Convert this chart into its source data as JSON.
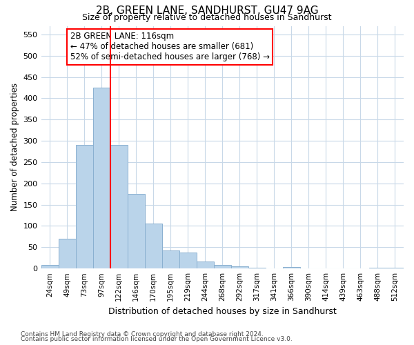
{
  "title1": "2B, GREEN LANE, SANDHURST, GU47 9AG",
  "title2": "Size of property relative to detached houses in Sandhurst",
  "xlabel": "Distribution of detached houses by size in Sandhurst",
  "ylabel": "Number of detached properties",
  "categories": [
    "24sqm",
    "49sqm",
    "73sqm",
    "97sqm",
    "122sqm",
    "146sqm",
    "170sqm",
    "195sqm",
    "219sqm",
    "244sqm",
    "268sqm",
    "292sqm",
    "317sqm",
    "341sqm",
    "366sqm",
    "390sqm",
    "414sqm",
    "439sqm",
    "463sqm",
    "488sqm",
    "512sqm"
  ],
  "values": [
    8,
    70,
    290,
    425,
    290,
    175,
    105,
    43,
    38,
    17,
    8,
    5,
    2,
    1,
    3,
    1,
    0,
    1,
    0,
    2,
    2
  ],
  "bar_color": "#bad4ea",
  "bar_edge_color": "#8ab0d0",
  "redline_x": 3.5,
  "annotation_text": "2B GREEN LANE: 116sqm\n← 47% of detached houses are smaller (681)\n52% of semi-detached houses are larger (768) →",
  "ylim": [
    0,
    570
  ],
  "yticks": [
    0,
    50,
    100,
    150,
    200,
    250,
    300,
    350,
    400,
    450,
    500,
    550
  ],
  "footer1": "Contains HM Land Registry data © Crown copyright and database right 2024.",
  "footer2": "Contains public sector information licensed under the Open Government Licence v3.0.",
  "background_color": "#ffffff",
  "grid_color": "#c8d8e8"
}
